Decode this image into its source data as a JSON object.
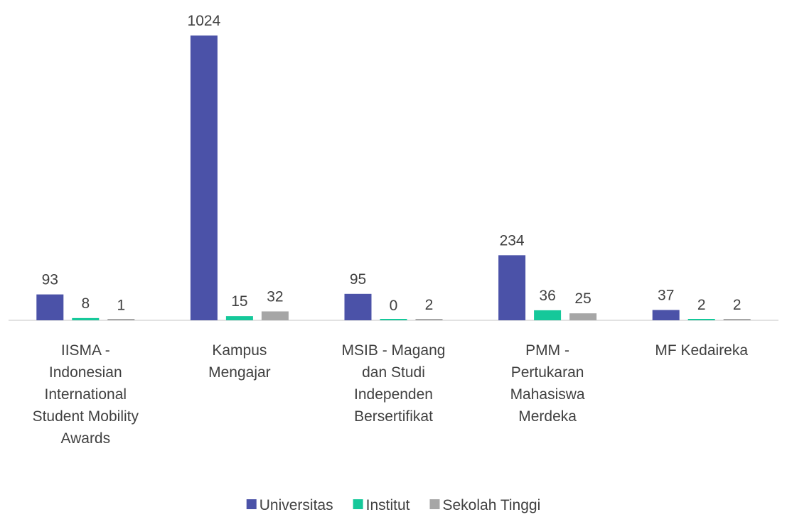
{
  "chart_data": {
    "type": "bar",
    "categories": [
      "IISMA - Indonesian International Student Mobility Awards",
      "Kampus Mengajar",
      "MSIB - Magang dan Studi Independen Bersertifikat",
      "PMM - Pertukaran Mahasiswa Merdeka",
      "MF Kedaireka"
    ],
    "series": [
      {
        "name": "Universitas",
        "color": "#4b52a8",
        "values": [
          93,
          1024,
          95,
          234,
          37
        ]
      },
      {
        "name": "Institut",
        "color": "#15c89a",
        "values": [
          8,
          15,
          0,
          36,
          2
        ]
      },
      {
        "name": "Sekolah Tinggi",
        "color": "#a6a6a6",
        "values": [
          1,
          32,
          2,
          25,
          2
        ]
      }
    ],
    "legend": "bottom"
  }
}
